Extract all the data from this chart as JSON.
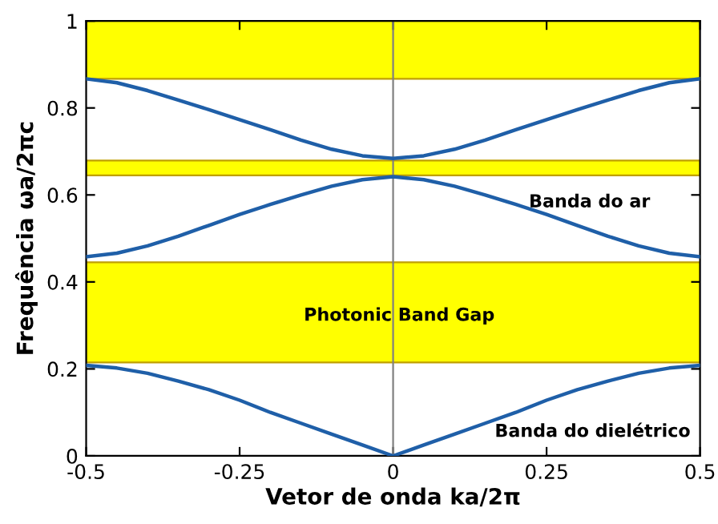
{
  "chart_data": {
    "type": "line",
    "xlabel": "Vetor de onda ka/2π",
    "ylabel": "Frequência ωa/2πc",
    "x": [
      -0.5,
      -0.45,
      -0.4,
      -0.35,
      -0.3,
      -0.25,
      -0.2,
      -0.15,
      -0.1,
      -0.05,
      0,
      0.05,
      0.1,
      0.15,
      0.2,
      0.25,
      0.3,
      0.35,
      0.4,
      0.45,
      0.5
    ],
    "series": [
      {
        "color": "#1f5fa8",
        "values": [
          0.208,
          0.202,
          0.19,
          0.172,
          0.152,
          0.128,
          0.1,
          0.075,
          0.05,
          0.025,
          0,
          0.025,
          0.05,
          0.075,
          0.1,
          0.128,
          0.152,
          0.172,
          0.19,
          0.202,
          0.208
        ]
      },
      {
        "color": "#1f5fa8",
        "values": [
          0.458,
          0.466,
          0.483,
          0.505,
          0.53,
          0.555,
          0.578,
          0.6,
          0.62,
          0.635,
          0.642,
          0.635,
          0.62,
          0.6,
          0.578,
          0.555,
          0.53,
          0.505,
          0.483,
          0.466,
          0.458
        ]
      },
      {
        "color": "#1f5fa8",
        "values": [
          0.867,
          0.858,
          0.84,
          0.818,
          0.796,
          0.773,
          0.75,
          0.726,
          0.705,
          0.69,
          0.684,
          0.69,
          0.705,
          0.726,
          0.75,
          0.773,
          0.796,
          0.818,
          0.84,
          0.858,
          0.867
        ]
      }
    ],
    "bands": [
      {
        "axis": "y",
        "from": 0.215,
        "to": 0.445,
        "color": "#ffff00"
      },
      {
        "axis": "y",
        "from": 0.645,
        "to": 0.679,
        "color": "#ffff00"
      },
      {
        "axis": "y",
        "from": 0.867,
        "to": 1,
        "color": "#ffff00"
      }
    ],
    "ref_lines": [
      {
        "axis": "x",
        "value": 0,
        "color": "#808080"
      }
    ],
    "annotations": [
      "Banda do ar",
      {
        "text": "Photonic Band Gap",
        "x": 0.01,
        "y": 0.322
      },
      "Banda do dielétrico"
    ],
    "xlim": [
      -0.5,
      0.5
    ],
    "ylim": [
      0,
      1
    ],
    "xticks": [
      -0.5,
      -0.25,
      0,
      0.25,
      0.5
    ],
    "yticks": [
      0,
      0.2,
      0.4,
      0.6,
      0.8,
      1
    ],
    "grid": false,
    "legend": false,
    "marker": "none",
    "line_style": "solid"
  }
}
